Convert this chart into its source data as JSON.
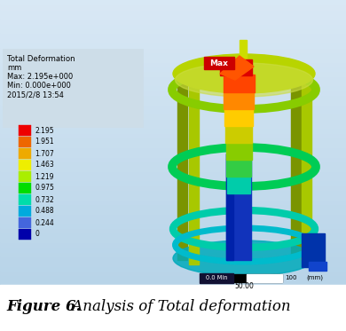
{
  "title": "Total Deformation",
  "unit": "mm",
  "max_val": "Max: 2.195e+000",
  "min_val": "Min: 0.000e+000",
  "date": "2015/2/8 13:54",
  "legend_values": [
    "2.195",
    "1.951",
    "1.707",
    "1.463",
    "1.219",
    "0.975",
    "0.732",
    "0.488",
    "0.244",
    "0"
  ],
  "legend_colors": [
    "#ee0000",
    "#ee6600",
    "#eeaa00",
    "#eeee00",
    "#aaee00",
    "#00dd00",
    "#00ddaa",
    "#00aadd",
    "#4466dd",
    "#0000aa"
  ],
  "bg_color": [
    0.78,
    0.87,
    0.94
  ],
  "bg_color2": [
    0.72,
    0.82,
    0.9
  ],
  "info_box_color": "#cddde8",
  "figure_caption_bold": "Figure 6.",
  "figure_caption_italic": " Analysis of Total deformation",
  "caption_fontsize": 12
}
